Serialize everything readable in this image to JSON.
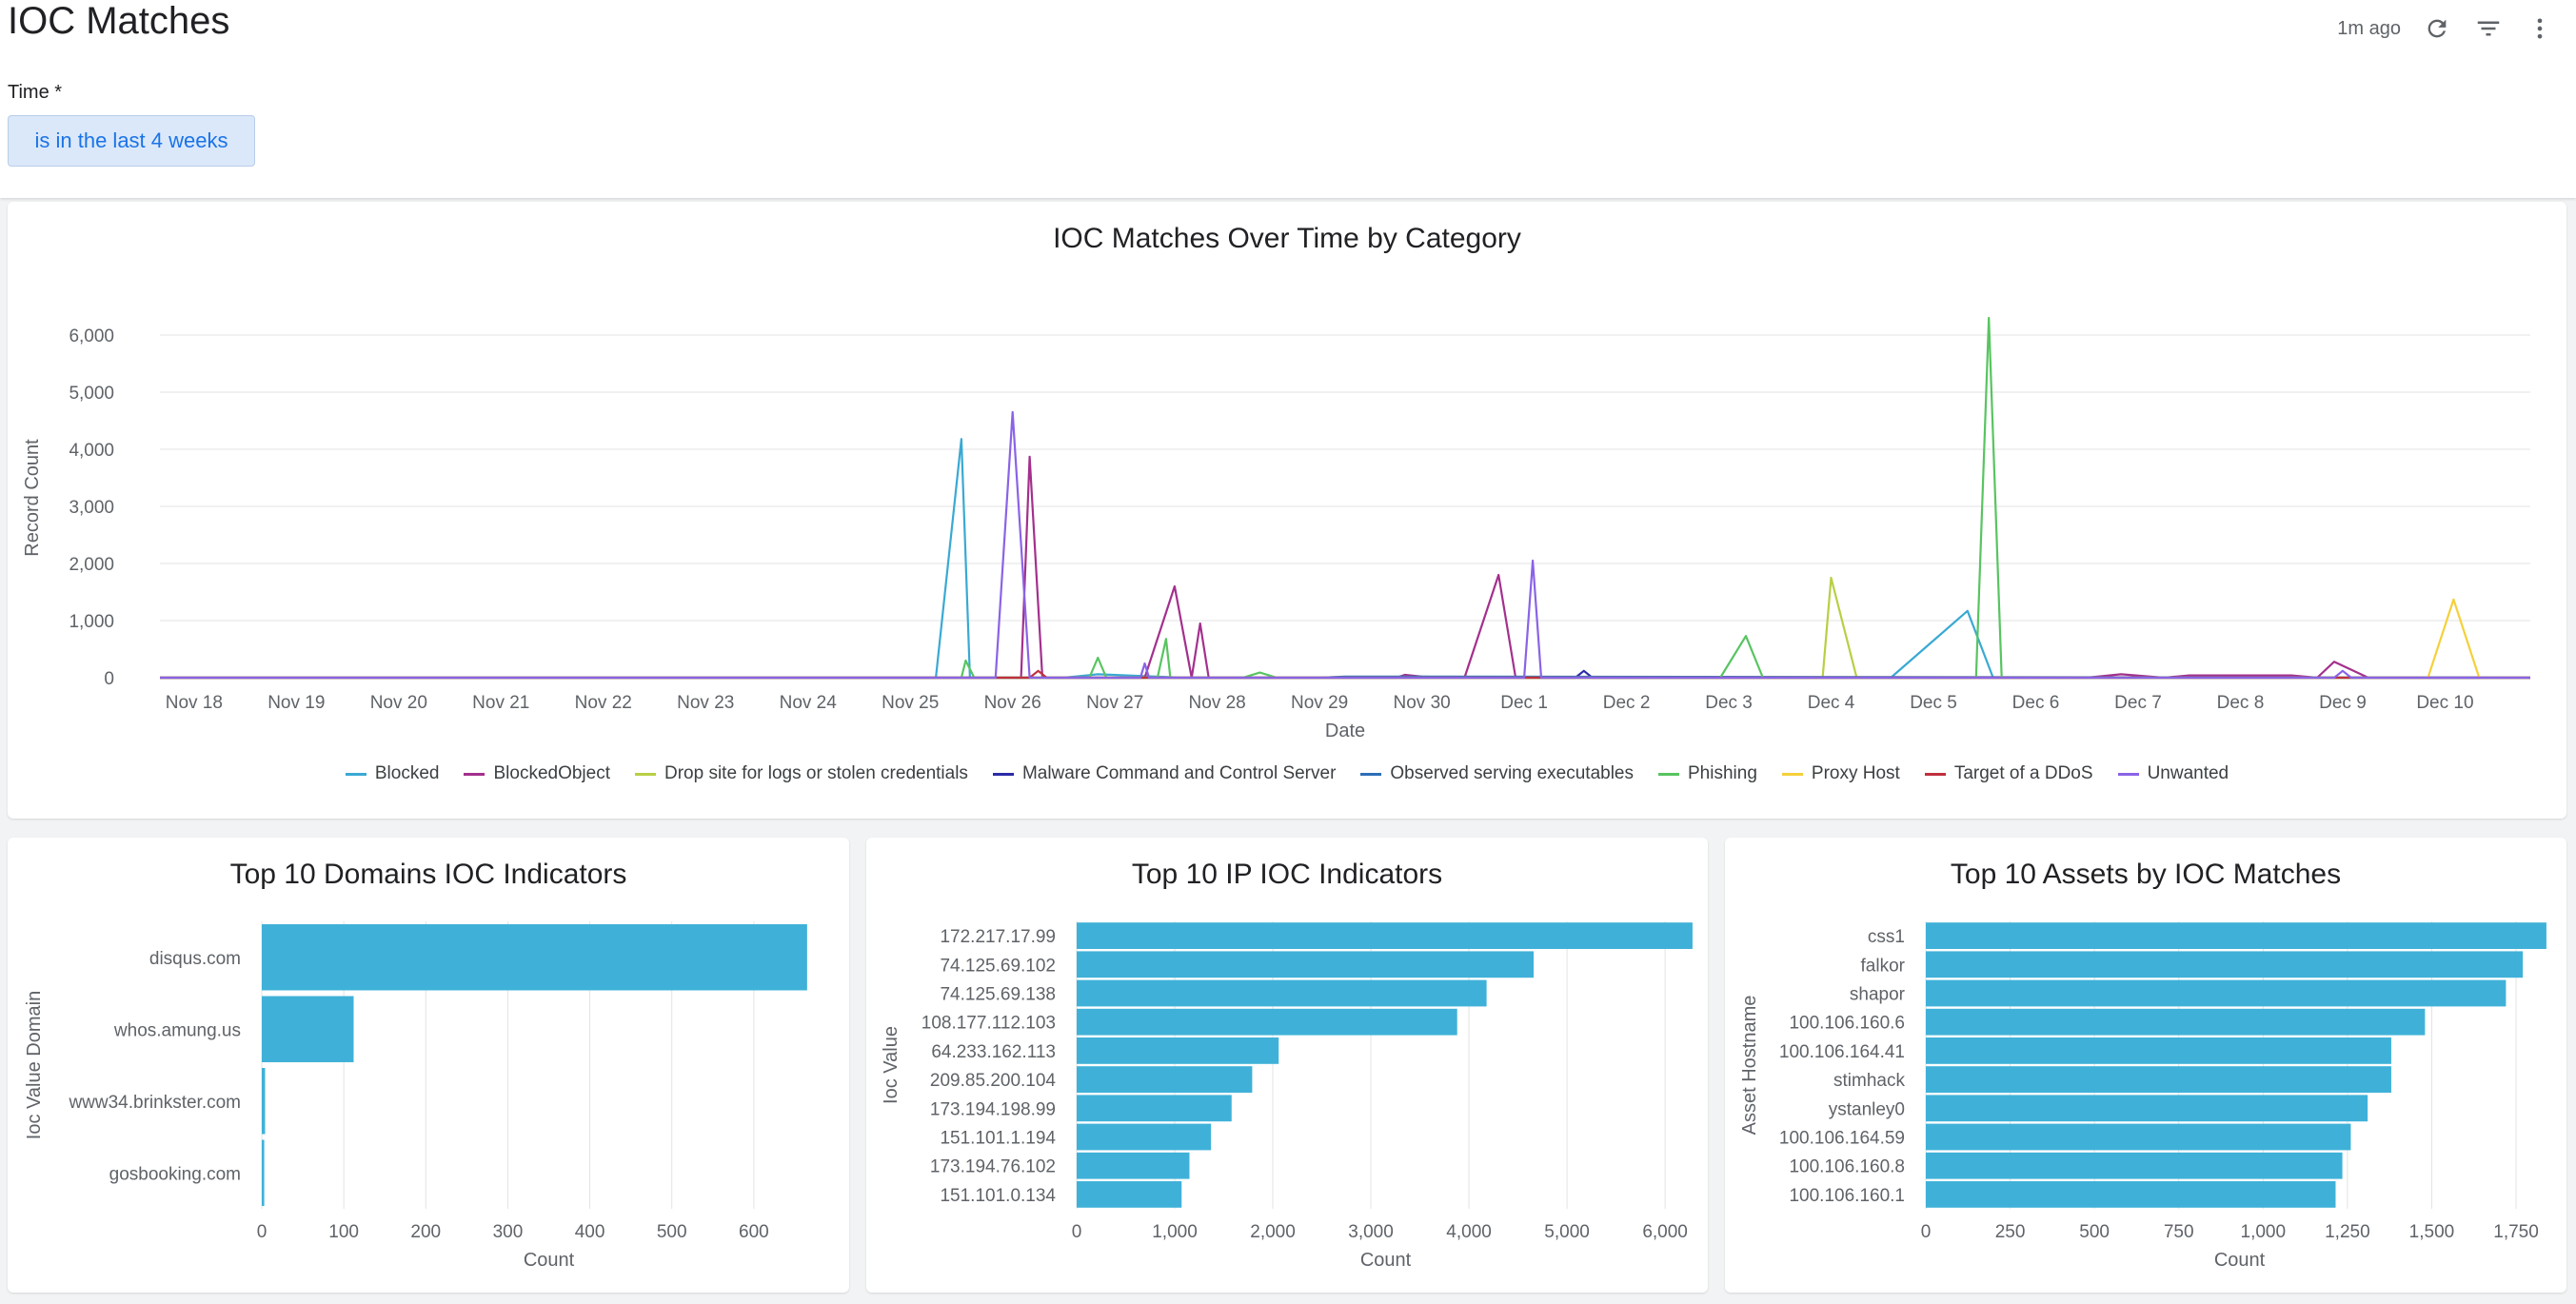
{
  "header": {
    "title": "IOC Matches",
    "updated": "1m ago"
  },
  "filter": {
    "label": "Time *",
    "value": "is in the last 4 weeks"
  },
  "icons": {
    "refresh": "refresh-icon",
    "filter": "filter-icon",
    "more": "more-vert-icon"
  },
  "charts": {
    "line": {
      "type": "line",
      "title": "IOC Matches Over Time by Category",
      "xlabel": "Date",
      "ylabel": "Record Count",
      "ylim": [
        0,
        6300
      ],
      "yticks": [
        0,
        1000,
        2000,
        3000,
        4000,
        5000,
        6000
      ],
      "ytick_labels": [
        "0",
        "1,000",
        "2,000",
        "3,000",
        "4,000",
        "5,000",
        "6,000"
      ],
      "xticks": [
        "Nov 18",
        "Nov 19",
        "Nov 20",
        "Nov 21",
        "Nov 22",
        "Nov 23",
        "Nov 24",
        "Nov 25",
        "Nov 26",
        "Nov 27",
        "Nov 28",
        "Nov 29",
        "Nov 30",
        "Dec 1",
        "Dec 2",
        "Dec 3",
        "Dec 4",
        "Dec 5",
        "Dec 6",
        "Dec 7",
        "Dec 8",
        "Dec 9",
        "Dec 10"
      ],
      "grid": true,
      "legend": "bottom",
      "series": [
        {
          "name": "Blocked",
          "color": "#3aa9d3",
          "points": [
            [
              "Nov 17 16:00",
              0
            ],
            [
              "Nov 25 06:00",
              0
            ],
            [
              "Nov 25 12:00",
              4180
            ],
            [
              "Nov 25 14:00",
              0
            ],
            [
              "Nov 26 12:00",
              0
            ],
            [
              "Nov 26 20:00",
              60
            ],
            [
              "Nov 27 16:00",
              0
            ],
            [
              "Dec 4 14:00",
              0
            ],
            [
              "Dec 5 08:00",
              1170
            ],
            [
              "Dec 5 14:00",
              0
            ],
            [
              "Dec 10 20:00",
              0
            ]
          ]
        },
        {
          "name": "BlockedObject",
          "color": "#a3308d",
          "points": [
            [
              "Nov 17 16:00",
              0
            ],
            [
              "Nov 26 02:00",
              0
            ],
            [
              "Nov 26 04:00",
              3870
            ],
            [
              "Nov 26 07:00",
              0
            ],
            [
              "Nov 27 07:00",
              0
            ],
            [
              "Nov 27 14:00",
              1600
            ],
            [
              "Nov 27 18:00",
              0
            ],
            [
              "Nov 27 20:00",
              950
            ],
            [
              "Nov 27 22:00",
              0
            ],
            [
              "Nov 29 18:00",
              0
            ],
            [
              "Nov 29 20:00",
              50
            ],
            [
              "Nov 30 00:00",
              20
            ],
            [
              "Nov 30 10:00",
              0
            ],
            [
              "Nov 30 18:00",
              1800
            ],
            [
              "Nov 30 22:00",
              0
            ],
            [
              "Dec 6 12:00",
              0
            ],
            [
              "Dec 6 20:00",
              60
            ],
            [
              "Dec 7 06:00",
              0
            ],
            [
              "Dec 7 12:00",
              40
            ],
            [
              "Dec 8 12:00",
              40
            ],
            [
              "Dec 8 18:00",
              0
            ],
            [
              "Dec 8 22:00",
              280
            ],
            [
              "Dec 9 06:00",
              0
            ],
            [
              "Dec 10 20:00",
              0
            ]
          ]
        },
        {
          "name": "Drop site for logs or stolen credentials",
          "color": "#b8cf44",
          "points": [
            [
              "Nov 17 16:00",
              0
            ],
            [
              "Dec 3 22:00",
              0
            ],
            [
              "Dec 4 00:00",
              1750
            ],
            [
              "Dec 4 06:00",
              0
            ],
            [
              "Dec 10 20:00",
              0
            ]
          ]
        },
        {
          "name": "Malware Command and Control Server",
          "color": "#2b2ba8",
          "points": [
            [
              "Nov 17 16:00",
              0
            ],
            [
              "Dec 1 12:00",
              0
            ],
            [
              "Dec 1 14:00",
              120
            ],
            [
              "Dec 1 16:00",
              0
            ],
            [
              "Dec 10 20:00",
              0
            ]
          ]
        },
        {
          "name": "Observed serving executables",
          "color": "#2d6eb8",
          "points": [
            [
              "Nov 17 16:00",
              0
            ],
            [
              "Nov 29 00:00",
              0
            ],
            [
              "Nov 29 06:00",
              20
            ],
            [
              "Dec 10 20:00",
              0
            ]
          ]
        },
        {
          "name": "Phishing",
          "color": "#58c461",
          "points": [
            [
              "Nov 17 16:00",
              0
            ],
            [
              "Nov 25 12:00",
              0
            ],
            [
              "Nov 25 13:00",
              300
            ],
            [
              "Nov 25 15:00",
              0
            ],
            [
              "Nov 26 18:00",
              0
            ],
            [
              "Nov 26 20:00",
              350
            ],
            [
              "Nov 26 22:00",
              0
            ],
            [
              "Nov 27 10:00",
              0
            ],
            [
              "Nov 27 12:00",
              680
            ],
            [
              "Nov 27 13:00",
              0
            ],
            [
              "Nov 28 06:00",
              0
            ],
            [
              "Nov 28 10:00",
              90
            ],
            [
              "Nov 28 14:00",
              0
            ],
            [
              "Dec 2 22:00",
              0
            ],
            [
              "Dec 3 04:00",
              730
            ],
            [
              "Dec 3 08:00",
              0
            ],
            [
              "Dec 5 10:00",
              0
            ],
            [
              "Dec 5 13:00",
              6300
            ],
            [
              "Dec 5 16:00",
              0
            ],
            [
              "Dec 10 20:00",
              0
            ]
          ]
        },
        {
          "name": "Proxy Host",
          "color": "#f5d03b",
          "points": [
            [
              "Nov 17 16:00",
              0
            ],
            [
              "Dec 9 20:00",
              0
            ],
            [
              "Dec 10 02:00",
              1370
            ],
            [
              "Dec 10 08:00",
              0
            ],
            [
              "Dec 10 20:00",
              0
            ]
          ]
        },
        {
          "name": "Target of a DDoS",
          "color": "#c0303e",
          "points": [
            [
              "Nov 17 16:00",
              0
            ],
            [
              "Nov 26 04:00",
              0
            ],
            [
              "Nov 26 06:00",
              120
            ],
            [
              "Nov 26 08:00",
              0
            ],
            [
              "Dec 10 20:00",
              0
            ]
          ]
        },
        {
          "name": "Unwanted",
          "color": "#8a63e6",
          "points": [
            [
              "Nov 17 16:00",
              0
            ],
            [
              "Nov 25 20:00",
              0
            ],
            [
              "Nov 26 00:00",
              4650
            ],
            [
              "Nov 26 04:00",
              0
            ],
            [
              "Nov 27 06:00",
              0
            ],
            [
              "Nov 27 07:00",
              250
            ],
            [
              "Nov 27 08:00",
              0
            ],
            [
              "Dec 1 00:00",
              0
            ],
            [
              "Dec 1 02:00",
              2050
            ],
            [
              "Dec 1 04:00",
              0
            ],
            [
              "Dec 8 22:00",
              0
            ],
            [
              "Dec 9 00:00",
              120
            ],
            [
              "Dec 9 02:00",
              0
            ],
            [
              "Dec 10 20:00",
              0
            ]
          ]
        }
      ]
    },
    "domains": {
      "type": "bar",
      "title": "Top 10 Domains IOC Indicators",
      "xlabel": "Count",
      "ylabel": "Ioc Value Domain",
      "xlim": [
        0,
        700
      ],
      "xticks": [
        0,
        100,
        200,
        300,
        400,
        500,
        600
      ],
      "xtick_labels": [
        "0",
        "100",
        "200",
        "300",
        "400",
        "500",
        "600"
      ],
      "categories": [
        "disqus.com",
        "whos.amung.us",
        "www34.brinkster.com",
        "gosbooking.com"
      ],
      "values": [
        665,
        112,
        4,
        3
      ],
      "color": "#3fb1d8"
    },
    "ips": {
      "type": "bar",
      "title": "Top 10 IP IOC Indicators",
      "xlabel": "Count",
      "ylabel": "Ioc Value",
      "xlim": [
        0,
        6300
      ],
      "xticks": [
        0,
        1000,
        2000,
        3000,
        4000,
        5000,
        6000
      ],
      "xtick_labels": [
        "0",
        "1,000",
        "2,000",
        "3,000",
        "4,000",
        "5,000",
        "6,000"
      ],
      "categories": [
        "172.217.17.99",
        "74.125.69.102",
        "74.125.69.138",
        "108.177.112.103",
        "64.233.162.113",
        "209.85.200.104",
        "173.194.198.99",
        "151.101.1.194",
        "173.194.76.102",
        "151.101.0.134"
      ],
      "values": [
        6280,
        4660,
        4180,
        3880,
        2060,
        1790,
        1580,
        1370,
        1150,
        1070
      ],
      "color": "#3fb1d8"
    },
    "assets": {
      "type": "bar",
      "title": "Top 10 Assets by IOC Matches",
      "xlabel": "Count",
      "ylabel": "Asset Hostname",
      "xlim": [
        0,
        1860
      ],
      "xticks": [
        0,
        250,
        500,
        750,
        1000,
        1250,
        1500,
        1750
      ],
      "xtick_labels": [
        "0",
        "250",
        "500",
        "750",
        "1,000",
        "1,250",
        "1,500",
        "1,750"
      ],
      "categories": [
        "css1",
        "falkor",
        "shapor",
        "100.106.160.6",
        "100.106.164.41",
        "stimhack",
        "ystanley0",
        "100.106.164.59",
        "100.106.160.8",
        "100.106.160.1"
      ],
      "values": [
        1840,
        1770,
        1720,
        1480,
        1380,
        1380,
        1310,
        1260,
        1235,
        1215
      ],
      "color": "#3fb1d8"
    }
  }
}
